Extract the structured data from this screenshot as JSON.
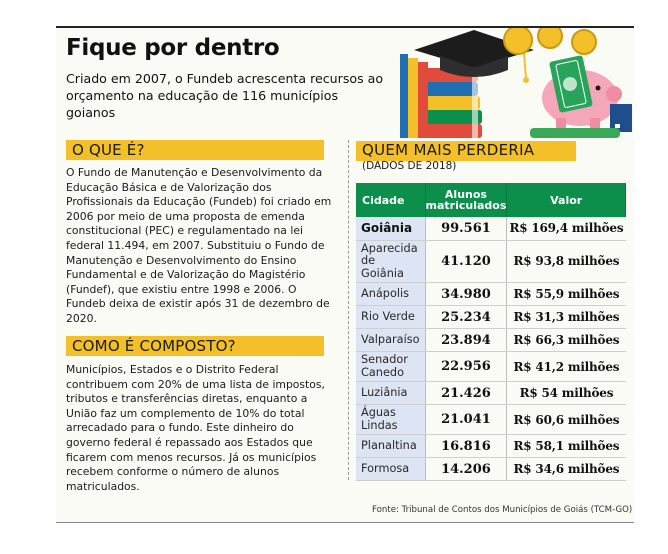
{
  "header": {
    "title": "Fique por dentro",
    "subtitle": "Criado em 2007, o Fundeb acrescenta recursos ao orçamento na educação de 116 municípios goianos"
  },
  "sections": {
    "what": {
      "heading": "O QUE É?",
      "text": "O Fundo de Manutenção e Desenvolvimento da Educação Básica e de Valorização dos Profissionais da Educação (Fundeb) foi criado em 2006 por meio de uma proposta de emenda constitucional (PEC) e regulamentado na lei federal 11.494, em 2007. Substituiu o Fundo de Manutenção e Desenvolvimento do Ensino Fundamental e de Valorização do Magistério (Fundef), que existiu entre 1998 e 2006. O Fundeb deixa de existir após 31 de dezembro de 2020."
    },
    "composition": {
      "heading": "COMO É COMPOSTO?",
      "text": "Municípios, Estados e o Distrito Federal contribuem com 20% de uma lista de impostos, tributos e transferências diretas, enquanto a União faz um complemento de 10% do total arrecadado para o fundo. Este dinheiro do governo federal é repassado aos Estados que ficarem com menos recursos. Já os municípios recebem conforme o número de alunos matriculados."
    }
  },
  "ranking": {
    "heading": "QUEM MAIS PERDERIA",
    "subheading": "(DADOS DE 2018)",
    "columns": [
      "Cidade",
      "Alunos matriculados",
      "Valor"
    ],
    "rows": [
      {
        "city": "Goiânia",
        "students": "99.561",
        "value": "R$ 169,4 milhões"
      },
      {
        "city": "Aparecida de Goiânia",
        "students": "41.120",
        "value": "R$ 93,8 milhões"
      },
      {
        "city": "Anápolis",
        "students": "34.980",
        "value": "R$ 55,9 milhões"
      },
      {
        "city": "Rio Verde",
        "students": "25.234",
        "value": "R$ 31,3 milhões"
      },
      {
        "city": "Valparaíso",
        "students": "23.894",
        "value": "R$ 66,3 milhões"
      },
      {
        "city": "Senador Canedo",
        "students": "22.956",
        "value": "R$ 41,2 milhões"
      },
      {
        "city": "Luziânia",
        "students": "21.426",
        "value": "R$ 54 milhões"
      },
      {
        "city": "Águas Lindas",
        "students": "21.041",
        "value": "R$ 60,6 milhões"
      },
      {
        "city": "Planaltina",
        "students": "16.816",
        "value": "R$ 58,1 milhões"
      },
      {
        "city": "Formosa",
        "students": "14.206",
        "value": "R$ 34,6 milhões"
      }
    ],
    "source": "Fonte: Tribunal de Contos dos Municípios de Goiás (TCM-GO)"
  },
  "illustration": {
    "coin_label": "R$",
    "icons": [
      "graduation-cap",
      "books",
      "piggy-bank",
      "coins",
      "money-bills"
    ]
  },
  "colors": {
    "accent_yellow": "#f4c02a",
    "table_green": "#0b8f4a",
    "city_cell_blue": "#dde4f3"
  }
}
